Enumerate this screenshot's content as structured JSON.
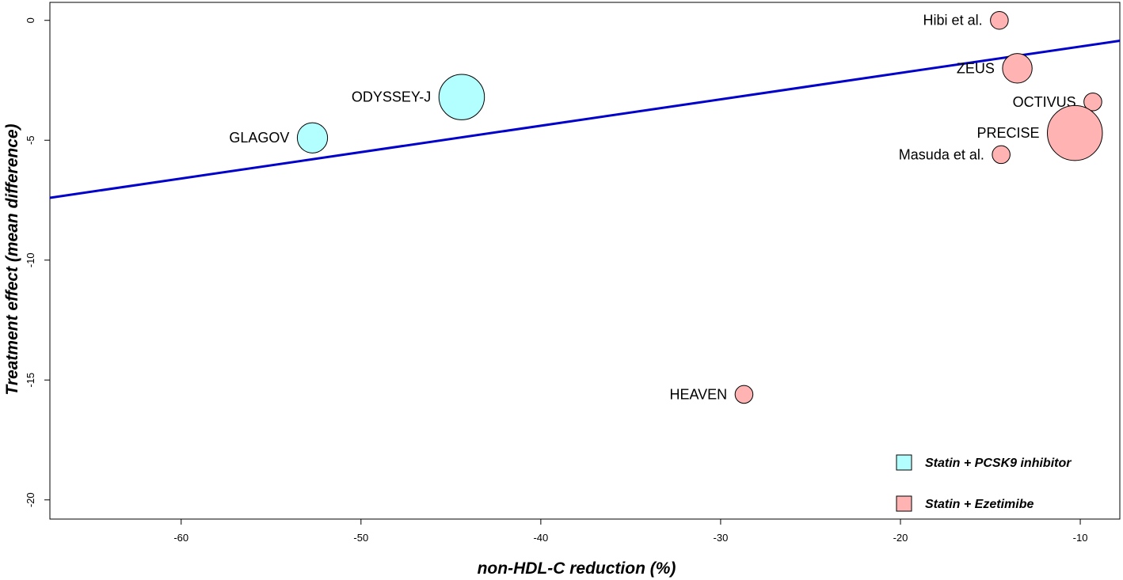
{
  "chart_data": {
    "type": "scatter",
    "xlabel": "non-HDL-C reduction (%)",
    "ylabel": "Treatment effect (mean difference)",
    "xlim": [
      -67.3,
      -7.8
    ],
    "ylim": [
      -20.8,
      0.75
    ],
    "xticks": [
      -60,
      -50,
      -40,
      -30,
      -20,
      -10
    ],
    "yticks": [
      0,
      -5,
      -10,
      -15,
      -20
    ],
    "grid": false,
    "legend_position": "bottom-right",
    "colors": {
      "Statin + PCSK9 inhibitor": "#b3ffff",
      "Statin + Ezetimibe": "#ffb3b3",
      "regression_line": "#0000cc"
    },
    "series": [
      {
        "name": "Statin + PCSK9 inhibitor",
        "points": [
          {
            "label": "ODYSSEY-J",
            "x": -44.4,
            "y": -3.2,
            "weight": 5.2
          },
          {
            "label": "GLAGOV",
            "x": -52.7,
            "y": -4.9,
            "weight": 2.3
          }
        ]
      },
      {
        "name": "Statin + Ezetimibe",
        "points": [
          {
            "label": "Hibi et al.",
            "x": -14.5,
            "y": 0.0,
            "weight": 0.8
          },
          {
            "label": "ZEUS",
            "x": -13.5,
            "y": -2.0,
            "weight": 2.2
          },
          {
            "label": "OCTIVUS",
            "x": -9.3,
            "y": -3.4,
            "weight": 0.8
          },
          {
            "label": "PRECISE",
            "x": -10.3,
            "y": -4.7,
            "weight": 7.6
          },
          {
            "label": "Masuda et al.",
            "x": -14.4,
            "y": -5.6,
            "weight": 0.8
          },
          {
            "label": "HEAVEN",
            "x": -28.7,
            "y": -15.6,
            "weight": 0.8
          }
        ]
      }
    ],
    "regression_line": {
      "x": [
        -67.3,
        -7.8
      ],
      "y": [
        -7.4,
        -0.85
      ]
    },
    "legend": [
      {
        "label": "Statin + PCSK9 inhibitor",
        "color": "#b3ffff"
      },
      {
        "label": "Statin + Ezetimibe",
        "color": "#ffb3b3"
      }
    ]
  }
}
